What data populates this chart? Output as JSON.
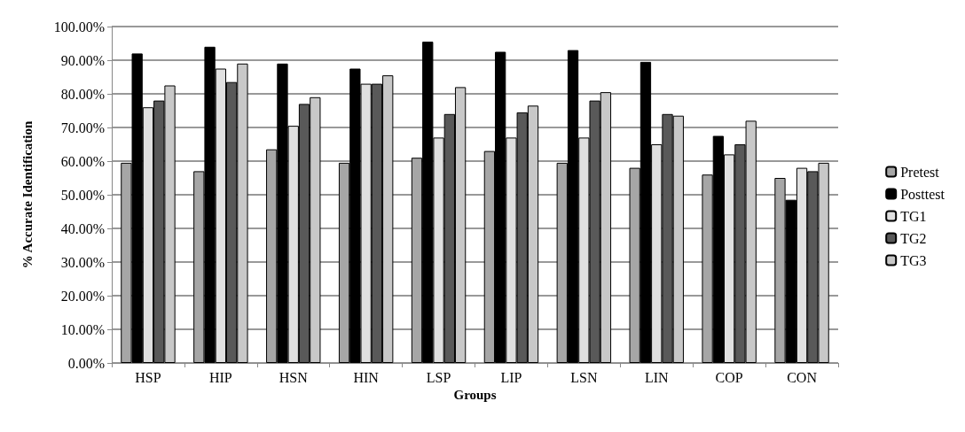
{
  "chart_data": {
    "type": "bar",
    "xlabel": "Groups",
    "ylabel": "% Accurate Identification",
    "categories": [
      "HSP",
      "HIP",
      "HSN",
      "HIN",
      "LSP",
      "LIP",
      "LSN",
      "LIN",
      "COP",
      "CON"
    ],
    "series": [
      {
        "name": "Pretest",
        "color": "#a6a6a6",
        "values": [
          59.5,
          57,
          63.5,
          59.5,
          61,
          63,
          59.5,
          58,
          56,
          55
        ]
      },
      {
        "name": "Posttest",
        "color": "#000000",
        "values": [
          92,
          94,
          89,
          87.5,
          95.5,
          92.5,
          93,
          89.5,
          67.5,
          48.5
        ]
      },
      {
        "name": "TG1",
        "color": "#e0e0e0",
        "values": [
          76,
          87.5,
          70.5,
          83,
          67,
          67,
          67,
          65,
          62,
          58
        ]
      },
      {
        "name": "TG2",
        "color": "#595959",
        "values": [
          78,
          83.5,
          77,
          83,
          74,
          74.5,
          78,
          74,
          65,
          57
        ]
      },
      {
        "name": "TG3",
        "color": "#c8c8c8",
        "values": [
          82.5,
          89,
          79,
          85.5,
          82,
          76.5,
          80.5,
          73.5,
          72,
          59.5
        ]
      }
    ],
    "ylim": [
      0,
      100
    ],
    "yticks": [
      {
        "value": 0,
        "label": "0.00%"
      },
      {
        "value": 10,
        "label": "10.00%"
      },
      {
        "value": 20,
        "label": "20.00%"
      },
      {
        "value": 30,
        "label": "30.00%"
      },
      {
        "value": 40,
        "label": "40.00%"
      },
      {
        "value": 50,
        "label": "50.00%"
      },
      {
        "value": 60,
        "label": "60.00%"
      },
      {
        "value": 70,
        "label": "70.00%"
      },
      {
        "value": 80,
        "label": "80.00%"
      },
      {
        "value": 90,
        "label": "90.00%"
      },
      {
        "value": 100,
        "label": "100.00%"
      }
    ],
    "grid": "y",
    "legend": "right"
  }
}
